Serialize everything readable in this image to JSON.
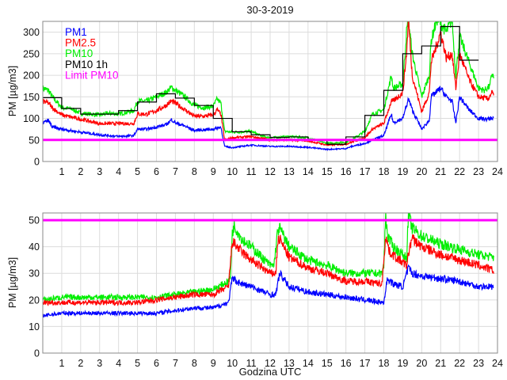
{
  "chart_data": [
    {
      "type": "line",
      "title": "30-3-2019",
      "xlabel": "",
      "ylabel": "PM [µg/m3]",
      "xlim": [
        0,
        24
      ],
      "ylim": [
        0,
        325
      ],
      "xticks": [
        "1",
        "2",
        "3",
        "4",
        "5",
        "6",
        "7",
        "8",
        "9",
        "10",
        "11",
        "12",
        "13",
        "14",
        "15",
        "16",
        "17",
        "18",
        "19",
        "20",
        "21",
        "22",
        "23",
        "24"
      ],
      "yticks": [
        0,
        50,
        100,
        150,
        200,
        250,
        300
      ],
      "grid": true,
      "legend_position": "top-left",
      "legend": [
        "PM1",
        "PM2.5",
        "PM10",
        "PM10 1h",
        "Limit PM10"
      ],
      "series": [
        {
          "name": "PM10",
          "color": "#00ee00",
          "x": [
            0,
            0.3,
            0.5,
            1,
            1.5,
            2,
            3,
            3.5,
            4,
            4.5,
            4.8,
            5,
            5.5,
            6,
            6.5,
            6.8,
            7,
            7.5,
            8,
            8.5,
            9,
            9.2,
            9.4,
            9.6,
            10,
            11,
            11.5,
            12,
            13,
            14,
            15,
            16,
            16.3,
            17,
            17.4,
            18,
            18.4,
            18.5,
            19,
            19.2,
            19.3,
            19.5,
            20,
            20.4,
            20.5,
            20.8,
            21,
            21.3,
            21.6,
            21.8,
            22,
            22.5,
            23,
            23.3,
            23.6,
            23.7,
            23.8
          ],
          "y": [
            170,
            165,
            150,
            125,
            122,
            112,
            108,
            112,
            110,
            115,
            118,
            140,
            140,
            150,
            160,
            172,
            165,
            150,
            130,
            125,
            128,
            145,
            135,
            70,
            68,
            70,
            60,
            55,
            58,
            55,
            42,
            45,
            50,
            70,
            110,
            120,
            200,
            170,
            180,
            300,
            330,
            250,
            150,
            200,
            280,
            330,
            320,
            300,
            330,
            200,
            290,
            230,
            170,
            165,
            175,
            205,
            195
          ]
        },
        {
          "name": "PM2.5",
          "color": "#ff0000",
          "x": [
            0,
            0.3,
            0.5,
            1,
            2,
            3,
            4,
            4.8,
            5,
            5.5,
            6,
            6.5,
            6.8,
            7,
            7.5,
            8,
            8.5,
            9,
            9.2,
            9.4,
            9.6,
            10,
            11,
            12,
            13,
            14,
            15,
            16,
            16.3,
            17,
            17.4,
            18,
            18.4,
            18.5,
            19,
            19.2,
            19.3,
            19.5,
            20,
            20.4,
            20.5,
            21,
            21.3,
            21.6,
            21.8,
            22,
            22.5,
            23,
            23.5,
            23.7,
            23.8
          ],
          "y": [
            140,
            135,
            125,
            108,
            98,
            88,
            88,
            88,
            110,
            110,
            118,
            130,
            140,
            135,
            120,
            105,
            105,
            108,
            120,
            110,
            50,
            55,
            58,
            50,
            50,
            48,
            38,
            40,
            45,
            55,
            75,
            88,
            140,
            140,
            160,
            250,
            330,
            200,
            115,
            160,
            230,
            300,
            240,
            250,
            170,
            250,
            190,
            150,
            145,
            160,
            152
          ]
        },
        {
          "name": "PM1",
          "color": "#0000ff",
          "x": [
            0,
            0.3,
            0.5,
            1,
            2,
            3,
            4,
            4.8,
            5,
            5.5,
            6,
            6.5,
            6.8,
            7,
            7.5,
            8,
            9,
            9.4,
            9.6,
            10,
            11,
            12,
            13,
            14,
            15,
            16,
            16.3,
            17,
            17.4,
            18,
            18.4,
            18.5,
            19,
            19.3,
            19.5,
            20,
            20.4,
            20.5,
            21,
            21.3,
            21.6,
            21.8,
            22,
            22.5,
            23,
            23.5,
            23.8
          ],
          "y": [
            90,
            95,
            80,
            75,
            68,
            62,
            58,
            60,
            75,
            75,
            80,
            85,
            97,
            90,
            82,
            72,
            75,
            80,
            35,
            32,
            38,
            35,
            35,
            33,
            28,
            30,
            35,
            42,
            50,
            60,
            110,
            90,
            100,
            145,
            120,
            75,
            95,
            150,
            170,
            150,
            140,
            90,
            150,
            120,
            100,
            98,
            102
          ]
        },
        {
          "name": "PM10 1h",
          "color": "#000000",
          "step_hourly": true,
          "x": [
            0,
            1,
            2,
            3,
            4,
            5,
            6,
            7,
            8,
            9,
            10,
            11,
            12,
            13,
            14,
            15,
            16,
            17,
            18,
            19,
            20,
            21,
            22
          ],
          "y": [
            148,
            123,
            110,
            110,
            118,
            138,
            157,
            147,
            130,
            100,
            69,
            62,
            56,
            57,
            50,
            40,
            57,
            107,
            165,
            250,
            268,
            313,
            235
          ]
        },
        {
          "name": "Limit PM10",
          "color": "#ff00ff",
          "constant": 50
        }
      ]
    },
    {
      "type": "line",
      "title": "",
      "xlabel": "Godzina UTC",
      "ylabel": "PM [µg/m3]",
      "xlim": [
        0,
        24
      ],
      "ylim": [
        0,
        52.7
      ],
      "xticks": [
        "1",
        "2",
        "3",
        "4",
        "5",
        "6",
        "7",
        "8",
        "9",
        "10",
        "11",
        "12",
        "13",
        "14",
        "15",
        "16",
        "17",
        "18",
        "19",
        "20",
        "21",
        "22",
        "23",
        "24"
      ],
      "yticks": [
        0,
        10,
        20,
        30,
        40,
        50
      ],
      "grid": true,
      "series": [
        {
          "name": "PM10",
          "color": "#00ee00",
          "x": [
            0,
            1,
            2,
            3,
            4,
            5,
            6,
            7,
            8,
            9,
            9.8,
            9.9,
            10,
            10.1,
            10.5,
            11,
            12,
            12.2,
            12.4,
            12.5,
            13,
            14,
            15,
            16,
            17,
            17.9,
            18,
            18.1,
            18.2,
            18.5,
            19,
            19.2,
            19.3,
            19.5,
            20,
            21,
            22,
            23,
            23.8
          ],
          "y": [
            20,
            21,
            21,
            21,
            21,
            21,
            21,
            22,
            23,
            24,
            27,
            28,
            45,
            48,
            43,
            40,
            33,
            33,
            46,
            47,
            40,
            35,
            33,
            30,
            30,
            30,
            33,
            52,
            44,
            40,
            37,
            36,
            52,
            47,
            44,
            41,
            39,
            37,
            36
          ]
        },
        {
          "name": "PM2.5",
          "color": "#ff0000",
          "x": [
            0,
            1,
            2,
            3,
            4,
            5,
            6,
            7,
            8,
            9,
            9.8,
            10,
            10.5,
            11,
            12,
            12.3,
            12.4,
            12.5,
            13,
            14,
            15,
            16,
            17,
            17.9,
            18.1,
            18.3,
            19,
            19.2,
            19.4,
            19.5,
            20,
            21,
            22,
            23,
            23.8
          ],
          "y": [
            19,
            19,
            19,
            19,
            19,
            19,
            20,
            21,
            22,
            22,
            25,
            42,
            38,
            35,
            30,
            30,
            42,
            43,
            36,
            32,
            30,
            27,
            27,
            26,
            44,
            38,
            34,
            33,
            41,
            43,
            40,
            37,
            35,
            33,
            31
          ]
        },
        {
          "name": "PM1",
          "color": "#0000ff",
          "x": [
            0,
            1,
            2,
            3,
            4,
            5,
            6,
            7,
            8,
            9,
            9.8,
            10,
            10.5,
            11,
            12,
            12.3,
            12.5,
            13,
            14,
            15,
            16,
            17,
            18,
            18.1,
            18.2,
            18.5,
            19,
            19.3,
            19.5,
            20,
            21,
            22,
            23,
            23.8
          ],
          "y": [
            14,
            15,
            15,
            15,
            15,
            15,
            15,
            16,
            17,
            17,
            19,
            28,
            26,
            25,
            22,
            22,
            30,
            25,
            23,
            22,
            21,
            20,
            19,
            24,
            28,
            26,
            25,
            32,
            30,
            29,
            28,
            27,
            25,
            25
          ]
        },
        {
          "name": "Limit PM10",
          "color": "#ff00ff",
          "constant": 50
        }
      ]
    }
  ]
}
